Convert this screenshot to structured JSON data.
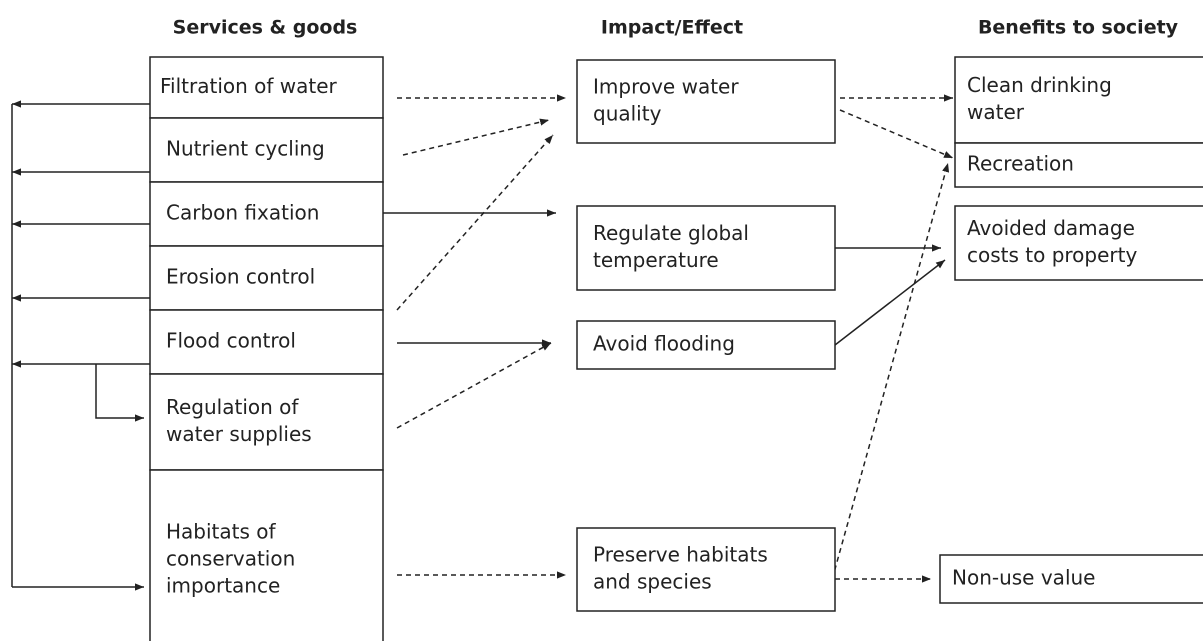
{
  "headers": [
    "Services & goods",
    "Impact/Effect",
    "Benefits to society"
  ],
  "services": [
    [
      "Filtration of water"
    ],
    [
      "Nutrient cycling"
    ],
    [
      "Carbon fixation"
    ],
    [
      "Erosion control"
    ],
    [
      "Flood control"
    ],
    [
      "Regulation of",
      "water supplies"
    ],
    [
      "Habitats of",
      "conservation",
      "importance"
    ]
  ],
  "impacts": [
    [
      "Improve water",
      "quality"
    ],
    [
      "Regulate global",
      "temperature"
    ],
    [
      "Avoid flooding"
    ],
    [
      "Preserve habitats",
      "and species"
    ]
  ],
  "benefits": [
    [
      "Clean drinking",
      "water"
    ],
    [
      "Recreation"
    ],
    [
      "Avoided damage",
      "costs to property"
    ],
    [
      "Non-use value"
    ]
  ]
}
